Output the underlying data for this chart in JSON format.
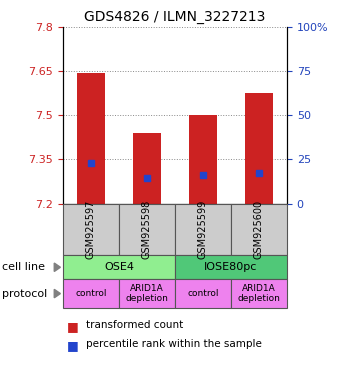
{
  "title": "GDS4826 / ILMN_3227213",
  "samples": [
    "GSM925597",
    "GSM925598",
    "GSM925599",
    "GSM925600"
  ],
  "bar_bottoms": [
    7.2,
    7.2,
    7.2,
    7.2
  ],
  "bar_tops": [
    7.645,
    7.44,
    7.502,
    7.575
  ],
  "blue_marks": [
    7.338,
    7.285,
    7.298,
    7.305
  ],
  "ylim": [
    7.2,
    7.8
  ],
  "yticks_left": [
    7.2,
    7.35,
    7.5,
    7.65,
    7.8
  ],
  "yticks_right": [
    0,
    25,
    50,
    75,
    100
  ],
  "ytick_labels_left": [
    "7.2",
    "7.35",
    "7.5",
    "7.65",
    "7.8"
  ],
  "ytick_labels_right": [
    "0",
    "25",
    "50",
    "75",
    "100%"
  ],
  "bar_color": "#cc2222",
  "blue_color": "#2244cc",
  "sample_box_color": "#cccccc",
  "grid_color": "#888888",
  "left_tick_color": "#cc2222",
  "right_tick_color": "#2244bb",
  "cell_line_colors": [
    "#90ee90",
    "#50c878"
  ],
  "proto_color": "#ee82ee",
  "proto_labels": [
    "control",
    "ARID1A\ndepletion",
    "control",
    "ARID1A\ndepletion"
  ]
}
